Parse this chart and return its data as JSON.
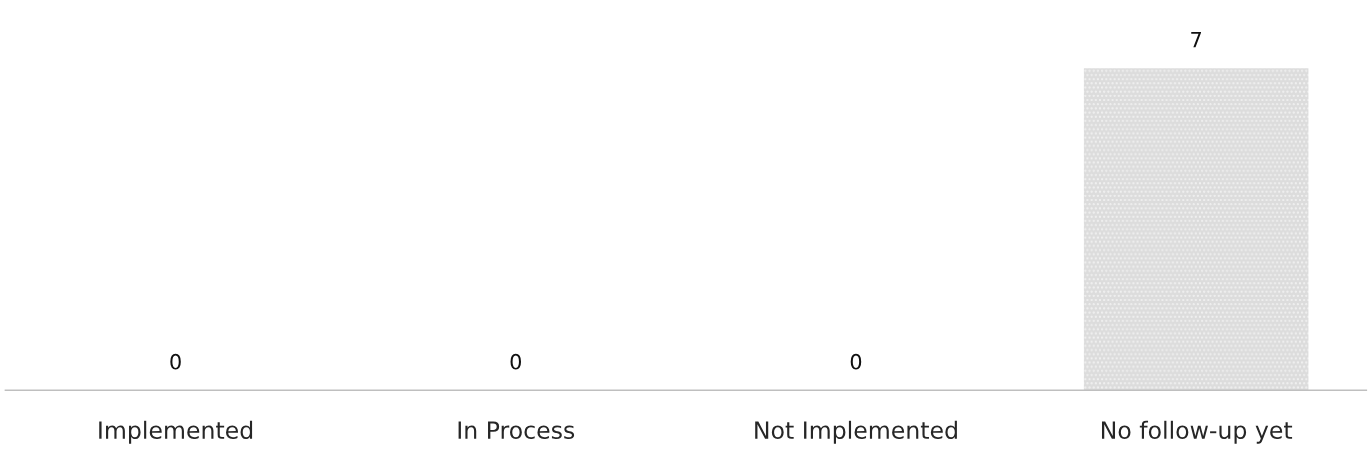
{
  "chart_data": {
    "type": "bar",
    "categories": [
      "Implemented",
      "In Process",
      "Not Implemented",
      "No follow-up yet"
    ],
    "values": [
      0,
      0,
      0,
      7
    ],
    "color": "#dcdcdc",
    "data_labels": true,
    "grid": false,
    "legend": false
  }
}
